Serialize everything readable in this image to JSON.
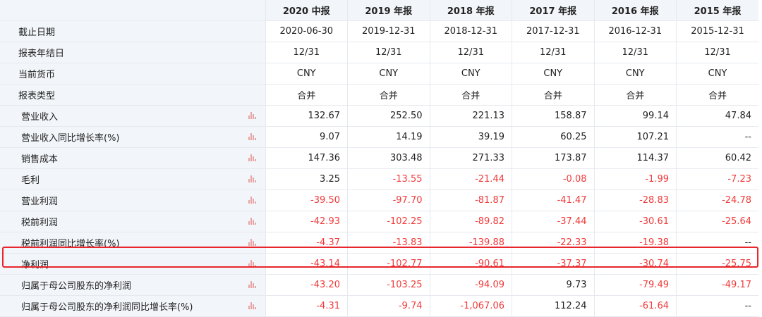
{
  "header": {
    "periods": [
      "2020 中报",
      "2019 年报",
      "2018 年报",
      "2017 年报",
      "2016 年报",
      "2015 年报"
    ]
  },
  "meta_rows": [
    {
      "label": "截止日期",
      "values": [
        "2020-06-30",
        "2019-12-31",
        "2018-12-31",
        "2017-12-31",
        "2016-12-31",
        "2015-12-31"
      ]
    },
    {
      "label": "报表年结日",
      "values": [
        "12/31",
        "12/31",
        "12/31",
        "12/31",
        "12/31",
        "12/31"
      ]
    },
    {
      "label": "当前货币",
      "values": [
        "CNY",
        "CNY",
        "CNY",
        "CNY",
        "CNY",
        "CNY"
      ]
    },
    {
      "label": "报表类型",
      "values": [
        "合并",
        "合并",
        "合并",
        "合并",
        "合并",
        "合并"
      ]
    }
  ],
  "metric_rows": [
    {
      "label": "营业收入",
      "values": [
        "132.67",
        "252.50",
        "221.13",
        "158.87",
        "99.14",
        "47.84"
      ],
      "neg": [
        false,
        false,
        false,
        false,
        false,
        false
      ]
    },
    {
      "label": "营业收入同比增长率(%)",
      "values": [
        "9.07",
        "14.19",
        "39.19",
        "60.25",
        "107.21",
        "--"
      ],
      "neg": [
        false,
        false,
        false,
        false,
        false,
        false
      ]
    },
    {
      "label": "销售成本",
      "values": [
        "147.36",
        "303.48",
        "271.33",
        "173.87",
        "114.37",
        "60.42"
      ],
      "neg": [
        false,
        false,
        false,
        false,
        false,
        false
      ]
    },
    {
      "label": "毛利",
      "values": [
        "3.25",
        "-13.55",
        "-21.44",
        "-0.08",
        "-1.99",
        "-7.23"
      ],
      "neg": [
        false,
        true,
        true,
        true,
        true,
        true
      ]
    },
    {
      "label": "营业利润",
      "values": [
        "-39.50",
        "-97.70",
        "-81.87",
        "-41.47",
        "-28.83",
        "-24.78"
      ],
      "neg": [
        true,
        true,
        true,
        true,
        true,
        true
      ]
    },
    {
      "label": "税前利润",
      "values": [
        "-42.93",
        "-102.25",
        "-89.82",
        "-37.44",
        "-30.61",
        "-25.64"
      ],
      "neg": [
        true,
        true,
        true,
        true,
        true,
        true
      ]
    },
    {
      "label": "税前利润同比增长率(%)",
      "values": [
        "-4.37",
        "-13.83",
        "-139.88",
        "-22.33",
        "-19.38",
        "--"
      ],
      "neg": [
        true,
        true,
        true,
        true,
        true,
        false
      ]
    },
    {
      "label": "净利润",
      "values": [
        "-43.14",
        "-102.77",
        "-90.61",
        "-37.37",
        "-30.74",
        "-25.75"
      ],
      "neg": [
        true,
        true,
        true,
        true,
        true,
        true
      ]
    },
    {
      "label": "归属于母公司股东的净利润",
      "values": [
        "-43.20",
        "-103.25",
        "-94.09",
        "9.73",
        "-79.49",
        "-49.17"
      ],
      "neg": [
        true,
        true,
        true,
        false,
        true,
        true
      ]
    },
    {
      "label": "归属于母公司股东的净利润同比增长率(%)",
      "values": [
        "-4.31",
        "-9.74",
        "-1,067.06",
        "112.24",
        "-61.64",
        "--"
      ],
      "neg": [
        true,
        true,
        true,
        false,
        true,
        false
      ]
    }
  ],
  "colors": {
    "negative": "#f23a3a",
    "header_bg": "#f2f5f9",
    "highlight_border": "#e8262b",
    "chart_icon": "#e8a5a5"
  },
  "icons": {
    "row_chart": "bar-chart-icon"
  }
}
